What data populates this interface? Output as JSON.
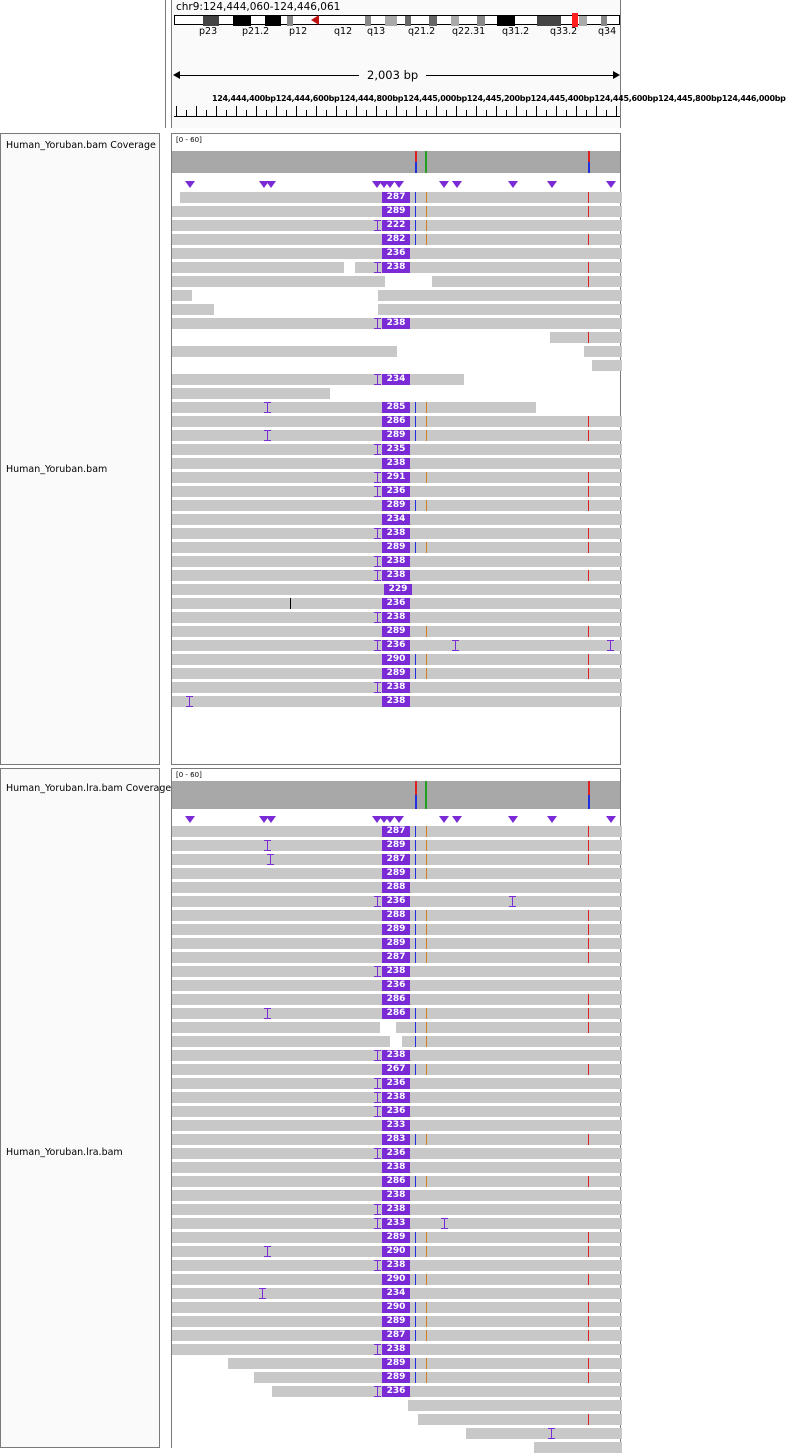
{
  "header": {
    "locus": "chr9:124,444,060-124,446,061",
    "span_label": "2,003 bp",
    "ideogram_bands": [
      "p23",
      "p21.2",
      "p12",
      "q12",
      "q13",
      "q21.2",
      "q22.31",
      "q31.2",
      "q33.2",
      "q34"
    ],
    "ruler_ticks": "124,444,400bp124,444,600bp124,444,800bp124,445,000bp124,445,200bp124,445,400bp124,445,600bp124,445,800bp124,446,000bp"
  },
  "panels": [
    {
      "coverage_name": "Human_Yoruban.bam Coverage",
      "alignment_name": "Human_Yoruban.bam",
      "data_range": "[0 - 60]",
      "insertion_labels": [
        "287",
        "289",
        "222",
        "282",
        "236",
        "238",
        "238",
        "234",
        "285",
        "286",
        "289",
        "235",
        "238",
        "291",
        "236",
        "289",
        "234",
        "238",
        "289",
        "238",
        "238",
        "229",
        "236",
        "238",
        "289",
        "236",
        "290",
        "289",
        "238",
        "238"
      ]
    },
    {
      "coverage_name": "Human_Yoruban.lra.bam Coverage",
      "alignment_name": "Human_Yoruban.lra.bam",
      "data_range": "[0 - 60]",
      "insertion_labels": [
        "287",
        "289",
        "287",
        "289",
        "288",
        "236",
        "288",
        "289",
        "289",
        "287",
        "238",
        "236",
        "286",
        "286",
        "238",
        "267",
        "236",
        "238",
        "236",
        "233",
        "283",
        "236",
        "238",
        "286",
        "238",
        "238",
        "233",
        "289",
        "290",
        "238",
        "290",
        "234",
        "290",
        "289",
        "287",
        "238",
        "289",
        "289",
        "236"
      ]
    }
  ],
  "colors": {
    "insertion": "#7a2bd6",
    "read": "#c8c8c8",
    "coverage": "#a8a8a8",
    "mismatch_red": "#e02020",
    "mismatch_blue": "#2030e0",
    "mismatch_green": "#20a020",
    "mismatch_orange": "#d08020"
  }
}
